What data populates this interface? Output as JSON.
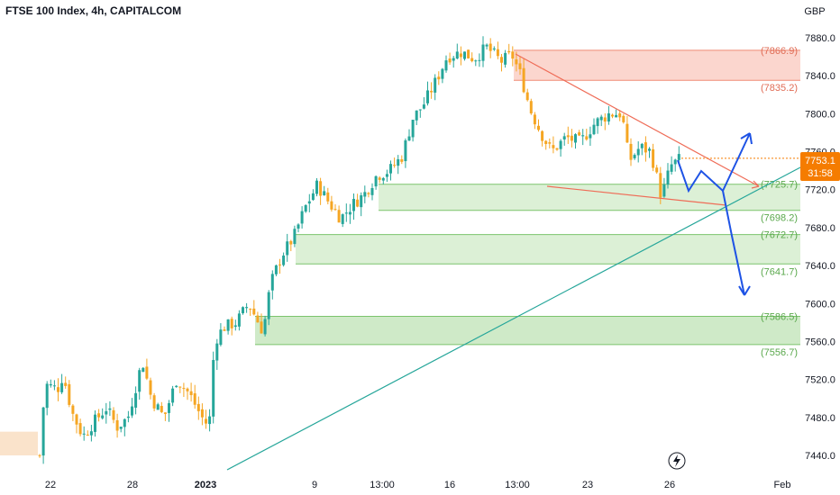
{
  "chart_data": {
    "type": "candlestick",
    "title": "FTSE 100 Index, 4h, CAPITALCOM",
    "currency": "GBP",
    "ylim": [
      7420,
      7900
    ],
    "y_ticks": [
      7440.0,
      7480.0,
      7520.0,
      7560.0,
      7600.0,
      7640.0,
      7680.0,
      7720.0,
      7760.0,
      7800.0,
      7840.0,
      7880.0
    ],
    "x_tick_labels": [
      {
        "label": "22",
        "bold": false
      },
      {
        "label": "28",
        "bold": false
      },
      {
        "label": "2023",
        "bold": true
      },
      {
        "label": "9",
        "bold": false
      },
      {
        "label": "13:00",
        "bold": false
      },
      {
        "label": "16",
        "bold": false
      },
      {
        "label": "13:00",
        "bold": false
      },
      {
        "label": "23",
        "bold": false
      },
      {
        "label": "26",
        "bold": false
      },
      {
        "label": "Feb",
        "bold": false
      }
    ],
    "zones": [
      {
        "top": 7866.9,
        "bottom": 7835.2,
        "top_label": "(7866.9)",
        "bottom_label": "(7835.2)",
        "kind": "resistance",
        "color": "#f7b4a6"
      },
      {
        "top": 7725.7,
        "bottom": 7698.2,
        "top_label": "(7725.7)",
        "bottom_label": "(7698.2)",
        "kind": "support",
        "color": "#bfe3b4"
      },
      {
        "top": 7672.7,
        "bottom": 7641.7,
        "top_label": "(7672.7)",
        "bottom_label": "(7641.7)",
        "kind": "support",
        "color": "#bfe3b4"
      },
      {
        "top": 7586.5,
        "bottom": 7556.7,
        "top_label": "(7586.5)",
        "bottom_label": "(7556.7)",
        "kind": "support",
        "color": "#a8d99b"
      }
    ],
    "current_price": {
      "value": "7753.1",
      "countdown": "31:58",
      "level": 7753.1
    },
    "colors": {
      "up": "#26a69a",
      "down": "#f5a623",
      "resistance_line": "#ef6c57",
      "trend_line": "#26a69a",
      "projection": "#1e53e5",
      "price_tag": "#f57c00"
    }
  }
}
